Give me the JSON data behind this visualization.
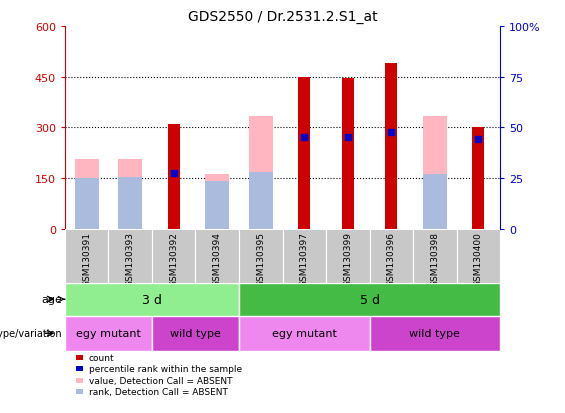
{
  "title": "GDS2550 / Dr.2531.2.S1_at",
  "samples": [
    "GSM130391",
    "GSM130393",
    "GSM130392",
    "GSM130394",
    "GSM130395",
    "GSM130397",
    "GSM130399",
    "GSM130396",
    "GSM130398",
    "GSM130400"
  ],
  "count_values": [
    0,
    0,
    310,
    0,
    0,
    450,
    445,
    490,
    0,
    300
  ],
  "absent_value_values": [
    205,
    205,
    0,
    163,
    335,
    0,
    0,
    0,
    335,
    0
  ],
  "absent_rank_values": [
    150,
    153,
    0,
    140,
    168,
    0,
    0,
    0,
    163,
    0
  ],
  "blue_marker_y": [
    0,
    0,
    165,
    0,
    0,
    270,
    270,
    285,
    0,
    265
  ],
  "ylim_left": [
    0,
    600
  ],
  "ylim_right": [
    0,
    100
  ],
  "yticks_left": [
    0,
    150,
    300,
    450,
    600
  ],
  "yticks_right": [
    0,
    25,
    50,
    75,
    100
  ],
  "age_groups": [
    {
      "label": "3 d",
      "start": 0,
      "end": 4,
      "color": "#90EE90"
    },
    {
      "label": "5 d",
      "start": 4,
      "end": 10,
      "color": "#44BB44"
    }
  ],
  "genotype_groups": [
    {
      "label": "egy mutant",
      "start": 0,
      "end": 2,
      "color": "#EE88EE"
    },
    {
      "label": "wild type",
      "start": 2,
      "end": 4,
      "color": "#CC44CC"
    },
    {
      "label": "egy mutant",
      "start": 4,
      "end": 7,
      "color": "#EE88EE"
    },
    {
      "label": "wild type",
      "start": 7,
      "end": 10,
      "color": "#CC44CC"
    }
  ],
  "color_count": "#CC0000",
  "color_rank_marker": "#0000CC",
  "color_absent_value": "#FFB6C1",
  "color_absent_rank": "#AABBDD",
  "count_bar_width": 0.28,
  "absent_bar_width": 0.55,
  "legend_items": [
    {
      "color": "#CC0000",
      "label": "count"
    },
    {
      "color": "#0000CC",
      "label": "percentile rank within the sample"
    },
    {
      "color": "#FFB6C1",
      "label": "value, Detection Call = ABSENT"
    },
    {
      "color": "#AABBDD",
      "label": "rank, Detection Call = ABSENT"
    }
  ],
  "left_axis_color": "#CC0000",
  "right_axis_color": "#0000CC",
  "background_color": "#FFFFFF",
  "age_label": "age",
  "genotype_label": "genotype/variation"
}
